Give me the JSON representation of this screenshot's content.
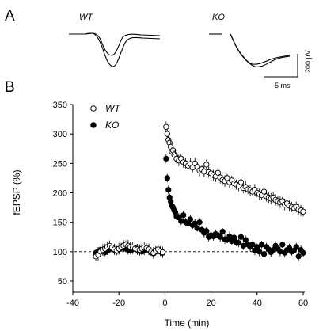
{
  "panel_a": {
    "label": "A",
    "traces": [
      {
        "name": "WT"
      },
      {
        "name": "KO"
      }
    ],
    "scale_bar": {
      "amplitude": "200 µV",
      "time": "5 ms"
    }
  },
  "panel_b": {
    "label": "B"
  },
  "chart_data": {
    "type": "scatter",
    "title": "",
    "xlabel": "Time (min)",
    "ylabel": "fEPSP (%)",
    "xlim": [
      -40,
      60
    ],
    "ylim": [
      50,
      350
    ],
    "xticks": [
      -40,
      -20,
      0,
      20,
      40,
      60
    ],
    "yticks": [
      50,
      100,
      150,
      200,
      250,
      300,
      350
    ],
    "baseline": 100,
    "legend": "top-left",
    "series": [
      {
        "name": "WT",
        "marker": "open-circle",
        "x": [
          -30,
          -29,
          -28,
          -27,
          -26,
          -25,
          -24,
          -23,
          -22,
          -21,
          -20,
          -19,
          -18,
          -17,
          -16,
          -15,
          -14,
          -13,
          -12,
          -11,
          -10,
          -9,
          -8,
          -7,
          -6,
          -5,
          -4,
          -3,
          -2,
          -1,
          0.5,
          1,
          1.5,
          2,
          2.5,
          3,
          3.5,
          4,
          4.5,
          5,
          6,
          7,
          8,
          9,
          10,
          11,
          12,
          13,
          14,
          15,
          16,
          17,
          18,
          19,
          20,
          21,
          22,
          23,
          24,
          25,
          26,
          27,
          28,
          29,
          30,
          31,
          32,
          33,
          34,
          35,
          36,
          37,
          38,
          39,
          40,
          41,
          42,
          43,
          44,
          45,
          46,
          47,
          48,
          49,
          50,
          51,
          52,
          53,
          54,
          55,
          56,
          57,
          58,
          59,
          60
        ],
        "y": [
          92,
          95,
          100,
          103,
          105,
          108,
          110,
          107,
          104,
          102,
          105,
          108,
          110,
          112,
          110,
          108,
          107,
          105,
          104,
          103,
          105,
          107,
          106,
          104,
          100,
          98,
          102,
          104,
          101,
          99,
          312,
          300,
          290,
          285,
          278,
          270,
          272,
          265,
          262,
          258,
          255,
          258,
          252,
          250,
          246,
          249,
          243,
          250,
          244,
          238,
          240,
          236,
          248,
          235,
          233,
          230,
          228,
          234,
          226,
          222,
          220,
          225,
          218,
          221,
          216,
          214,
          212,
          218,
          208,
          210,
          206,
          204,
          202,
          205,
          200,
          198,
          196,
          202,
          194,
          192,
          190,
          192,
          188,
          186,
          184,
          186,
          180,
          182,
          178,
          176,
          174,
          176,
          172,
          170,
          168
        ],
        "err": 10
      },
      {
        "name": "KO",
        "marker": "filled-circle",
        "x": [
          -30,
          -29,
          -28,
          -27,
          -26,
          -25,
          -24,
          -23,
          -22,
          -21,
          -20,
          -19,
          -18,
          -17,
          -16,
          -15,
          -14,
          -13,
          -12,
          -11,
          -10,
          -9,
          -8,
          -7,
          -6,
          -5,
          -4,
          -3,
          -2,
          -1,
          0.5,
          1,
          1.5,
          2,
          2.5,
          3,
          3.5,
          4,
          4.5,
          5,
          6,
          7,
          8,
          9,
          10,
          11,
          12,
          13,
          14,
          15,
          16,
          17,
          18,
          19,
          20,
          21,
          22,
          23,
          24,
          25,
          26,
          27,
          28,
          29,
          30,
          31,
          32,
          33,
          34,
          35,
          36,
          37,
          38,
          39,
          40,
          41,
          42,
          43,
          44,
          45,
          46,
          47,
          48,
          49,
          50,
          51,
          52,
          53,
          54,
          55,
          56,
          57,
          58,
          59,
          60
        ],
        "y": [
          98,
          100,
          103,
          101,
          99,
          102,
          104,
          106,
          103,
          101,
          104,
          106,
          108,
          105,
          103,
          102,
          104,
          106,
          103,
          101,
          100,
          102,
          104,
          103,
          99,
          97,
          100,
          103,
          100,
          98,
          258,
          225,
          205,
          192,
          185,
          178,
          175,
          170,
          167,
          160,
          158,
          152,
          162,
          150,
          148,
          155,
          145,
          148,
          140,
          150,
          137,
          132,
          135,
          125,
          128,
          126,
          130,
          128,
          125,
          134,
          121,
          120,
          126,
          118,
          124,
          116,
          115,
          125,
          110,
          120,
          112,
          108,
          112,
          102,
          108,
          100,
          112,
          96,
          108,
          104,
          99,
          103,
          110,
          105,
          100,
          112,
          98,
          103,
          106,
          100,
          102,
          108,
          92,
          103,
          98
        ],
        "err": 8
      }
    ]
  }
}
